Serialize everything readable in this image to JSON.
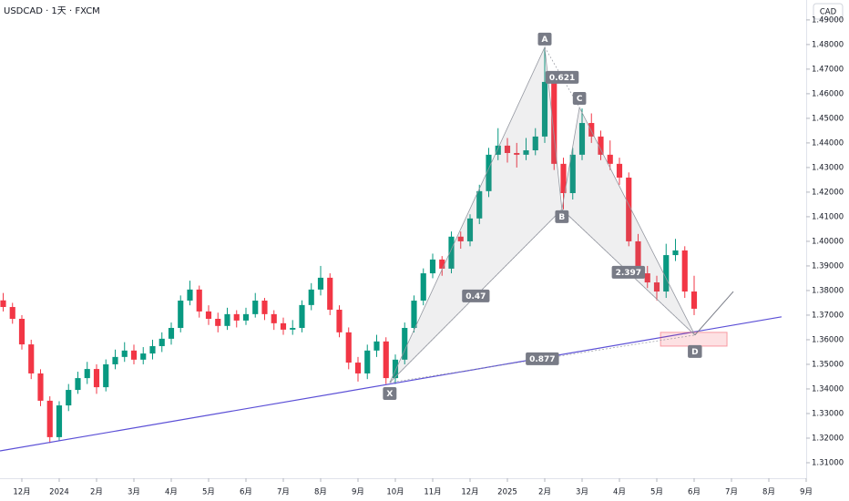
{
  "chart_data": {
    "type": "candlestick",
    "title": "USDCAD · 1天 · FXCM",
    "currency": "CAD",
    "up_color": "#089981",
    "down_color": "#f23645",
    "xlim": [
      -0.585,
      21.0
    ],
    "ylim": [
      1.3037,
      1.4981
    ],
    "xticks": [
      {
        "value": 0,
        "label": "12月"
      },
      {
        "value": 1,
        "label": "2024"
      },
      {
        "value": 2,
        "label": "2月"
      },
      {
        "value": 3,
        "label": "3月"
      },
      {
        "value": 4,
        "label": "4月"
      },
      {
        "value": 5,
        "label": "5月"
      },
      {
        "value": 6,
        "label": "6月"
      },
      {
        "value": 7,
        "label": "7月"
      },
      {
        "value": 8,
        "label": "8月"
      },
      {
        "value": 9,
        "label": "9月"
      },
      {
        "value": 10,
        "label": "10月"
      },
      {
        "value": 11,
        "label": "11月"
      },
      {
        "value": 12,
        "label": "12月"
      },
      {
        "value": 13,
        "label": "2025"
      },
      {
        "value": 14,
        "label": "2月"
      },
      {
        "value": 15,
        "label": "3月"
      },
      {
        "value": 16,
        "label": "4月"
      },
      {
        "value": 17,
        "label": "5月"
      },
      {
        "value": 18,
        "label": "6月"
      },
      {
        "value": 19,
        "label": "7月"
      },
      {
        "value": 20,
        "label": "8月"
      },
      {
        "value": 21,
        "label": "9月"
      }
    ],
    "yticks": [
      {
        "value": 1.31,
        "label": "1.31000"
      },
      {
        "value": 1.32,
        "label": "1.32000"
      },
      {
        "value": 1.33,
        "label": "1.33000"
      },
      {
        "value": 1.34,
        "label": "1.34000"
      },
      {
        "value": 1.35,
        "label": "1.35000"
      },
      {
        "value": 1.36,
        "label": "1.36000"
      },
      {
        "value": 1.37,
        "label": "1.37000"
      },
      {
        "value": 1.38,
        "label": "1.38000"
      },
      {
        "value": 1.39,
        "label": "1.39000"
      },
      {
        "value": 1.4,
        "label": "1.40000"
      },
      {
        "value": 1.41,
        "label": "1.41000"
      },
      {
        "value": 1.42,
        "label": "1.42000"
      },
      {
        "value": 1.43,
        "label": "1.43000"
      },
      {
        "value": 1.44,
        "label": "1.44000"
      },
      {
        "value": 1.45,
        "label": "1.45000"
      },
      {
        "value": 1.46,
        "label": "1.46000"
      },
      {
        "value": 1.47,
        "label": "1.47000"
      },
      {
        "value": 1.48,
        "label": "1.48000"
      },
      {
        "value": 1.49,
        "label": "1.49000"
      }
    ],
    "x": [
      -0.5,
      -0.25,
      0,
      0.25,
      0.5,
      0.75,
      1,
      1.25,
      1.5,
      1.75,
      2,
      2.25,
      2.5,
      2.75,
      3,
      3.25,
      3.5,
      3.75,
      4,
      4.25,
      4.5,
      4.75,
      5,
      5.25,
      5.5,
      5.75,
      6,
      6.25,
      6.5,
      6.75,
      7,
      7.25,
      7.5,
      7.75,
      8,
      8.25,
      8.5,
      8.75,
      9,
      9.25,
      9.5,
      9.75,
      10,
      10.25,
      10.5,
      10.75,
      11,
      11.25,
      11.5,
      11.75,
      12,
      12.25,
      12.5,
      12.75,
      13,
      13.25,
      13.5,
      13.75,
      14,
      14.25,
      14.5,
      14.75,
      15,
      15.25,
      15.5,
      15.75,
      16,
      16.25,
      16.5,
      16.75,
      17,
      17.25,
      17.5,
      17.75,
      18
    ],
    "ohlc": [
      [
        1.376,
        1.379,
        1.3715,
        1.3733
      ],
      [
        1.3733,
        1.375,
        1.3665,
        1.3685
      ],
      [
        1.3685,
        1.37,
        1.356,
        1.3581
      ],
      [
        1.3581,
        1.36,
        1.344,
        1.3463
      ],
      [
        1.3463,
        1.348,
        1.333,
        1.3352
      ],
      [
        1.3352,
        1.337,
        1.318,
        1.3204
      ],
      [
        1.3204,
        1.335,
        1.319,
        1.3333
      ],
      [
        1.3333,
        1.342,
        1.331,
        1.3396
      ],
      [
        1.3396,
        1.347,
        1.338,
        1.3444
      ],
      [
        1.3444,
        1.351,
        1.342,
        1.3481
      ],
      [
        1.3481,
        1.35,
        1.338,
        1.3407
      ],
      [
        1.3407,
        1.352,
        1.339,
        1.35
      ],
      [
        1.35,
        1.356,
        1.348,
        1.353
      ],
      [
        1.353,
        1.359,
        1.351,
        1.3556
      ],
      [
        1.3556,
        1.358,
        1.35,
        1.3519
      ],
      [
        1.3519,
        1.357,
        1.35,
        1.3544
      ],
      [
        1.3544,
        1.36,
        1.352,
        1.3574
      ],
      [
        1.3574,
        1.363,
        1.355,
        1.3604
      ],
      [
        1.3604,
        1.367,
        1.358,
        1.3648
      ],
      [
        1.3648,
        1.378,
        1.363,
        1.3759
      ],
      [
        1.3759,
        1.384,
        1.374,
        1.3804
      ],
      [
        1.3804,
        1.382,
        1.369,
        1.3715
      ],
      [
        1.3715,
        1.374,
        1.366,
        1.3685
      ],
      [
        1.3685,
        1.371,
        1.363,
        1.3656
      ],
      [
        1.3656,
        1.373,
        1.364,
        1.3704
      ],
      [
        1.3704,
        1.372,
        1.365,
        1.3678
      ],
      [
        1.3678,
        1.373,
        1.366,
        1.3704
      ],
      [
        1.3704,
        1.379,
        1.369,
        1.3759
      ],
      [
        1.3759,
        1.377,
        1.368,
        1.3704
      ],
      [
        1.3704,
        1.372,
        1.364,
        1.3667
      ],
      [
        1.3667,
        1.369,
        1.362,
        1.3641
      ],
      [
        1.3641,
        1.368,
        1.362,
        1.3648
      ],
      [
        1.3648,
        1.376,
        1.363,
        1.3741
      ],
      [
        1.3741,
        1.383,
        1.372,
        1.3804
      ],
      [
        1.3804,
        1.39,
        1.378,
        1.3852
      ],
      [
        1.3852,
        1.387,
        1.37,
        1.3722
      ],
      [
        1.3722,
        1.374,
        1.361,
        1.363
      ],
      [
        1.363,
        1.365,
        1.348,
        1.3507
      ],
      [
        1.3507,
        1.353,
        1.343,
        1.3463
      ],
      [
        1.3463,
        1.358,
        1.344,
        1.3556
      ],
      [
        1.3556,
        1.362,
        1.353,
        1.3593
      ],
      [
        1.3593,
        1.361,
        1.342,
        1.3444
      ],
      [
        1.3444,
        1.354,
        1.342,
        1.3519
      ],
      [
        1.3519,
        1.367,
        1.35,
        1.3648
      ],
      [
        1.3648,
        1.378,
        1.363,
        1.3759
      ],
      [
        1.3759,
        1.389,
        1.374,
        1.387
      ],
      [
        1.387,
        1.395,
        1.385,
        1.3926
      ],
      [
        1.3926,
        1.394,
        1.386,
        1.3889
      ],
      [
        1.3889,
        1.404,
        1.387,
        1.4019
      ],
      [
        1.4019,
        1.404,
        1.397,
        1.4
      ],
      [
        1.4,
        1.411,
        1.398,
        1.4093
      ],
      [
        1.4093,
        1.423,
        1.407,
        1.4204
      ],
      [
        1.4204,
        1.438,
        1.418,
        1.4352
      ],
      [
        1.4352,
        1.446,
        1.433,
        1.4389
      ],
      [
        1.4389,
        1.442,
        1.432,
        1.4359
      ],
      [
        1.4359,
        1.44,
        1.43,
        1.4352
      ],
      [
        1.4352,
        1.442,
        1.433,
        1.437
      ],
      [
        1.437,
        1.446,
        1.435,
        1.4426
      ],
      [
        1.4426,
        1.479,
        1.44,
        1.4648
      ],
      [
        1.4648,
        1.468,
        1.429,
        1.4315
      ],
      [
        1.4315,
        1.434,
        1.413,
        1.4196
      ],
      [
        1.4196,
        1.438,
        1.417,
        1.4352
      ],
      [
        1.4352,
        1.454,
        1.433,
        1.4481
      ],
      [
        1.4481,
        1.452,
        1.44,
        1.4426
      ],
      [
        1.4426,
        1.445,
        1.433,
        1.4352
      ],
      [
        1.4352,
        1.441,
        1.429,
        1.4315
      ],
      [
        1.4315,
        1.434,
        1.423,
        1.4259
      ],
      [
        1.4259,
        1.428,
        1.398,
        1.4
      ],
      [
        1.4,
        1.403,
        1.385,
        1.387
      ],
      [
        1.387,
        1.39,
        1.381,
        1.3833
      ],
      [
        1.3833,
        1.386,
        1.376,
        1.3796
      ],
      [
        1.3796,
        1.399,
        1.377,
        1.3944
      ],
      [
        1.3944,
        1.401,
        1.392,
        1.3963
      ],
      [
        1.3963,
        1.398,
        1.377,
        1.3796
      ],
      [
        1.3796,
        1.386,
        1.37,
        1.3726
      ]
    ],
    "pattern": {
      "points": [
        {
          "label": "X",
          "x": 9.85,
          "y": 1.3426
        },
        {
          "label": "A",
          "x": 14.0,
          "y": 1.4789
        },
        {
          "label": "B",
          "x": 14.46,
          "y": 1.413
        },
        {
          "label": "C",
          "x": 14.93,
          "y": 1.4544
        },
        {
          "label": "D",
          "x": 18.02,
          "y": 1.3619
        }
      ],
      "ratios": [
        {
          "label": "0.621",
          "from": 1,
          "to": 3
        },
        {
          "label": "0.47",
          "from": 0,
          "to": 2
        },
        {
          "label": "2.397",
          "from": 2,
          "to": 4
        },
        {
          "label": "0.877",
          "from": 0,
          "to": 4
        }
      ]
    },
    "trendline": [
      [
        -0.585,
        1.3148
      ],
      [
        20.34,
        1.3693
      ]
    ],
    "projection": [
      [
        18.02,
        1.3619
      ],
      [
        19.05,
        1.3796
      ]
    ],
    "target_zone": {
      "x": [
        17.1,
        18.88
      ],
      "y": [
        1.3574,
        1.363
      ]
    }
  }
}
